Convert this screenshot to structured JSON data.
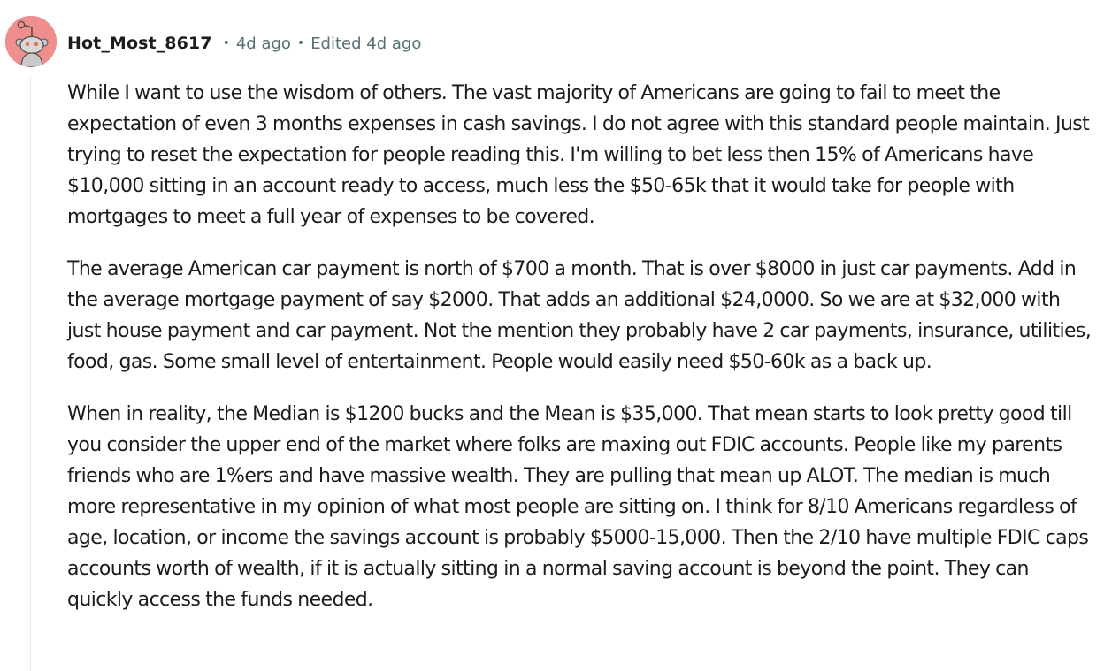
{
  "comment": {
    "author": "Hot_Most_8617",
    "separator": "•",
    "age": "4d ago",
    "edited": "Edited 4d ago",
    "avatar_color": "#ef8e8e",
    "avatar_icon": "snoo-avatar-icon",
    "paragraphs": [
      "While I want to use the wisdom of others. The vast majority of Americans are going to fail to meet the expectation of even 3 months expenses in cash savings. I do not agree with this standard people maintain. Just trying to reset the expectation for people reading this. I'm willing to bet less then 15% of Americans have $10,000 sitting in an account ready to access, much less the $50-65k that it would take for people with mortgages to meet a full year of expenses to be covered.",
      "The average American car payment is north of $700 a month. That is over $8000 in just car payments. Add in the average mortgage payment of say $2000. That adds an additional $24,0000. So we are at $32,000 with just house payment and car payment. Not the mention they probably have 2 car payments, insurance, utilities, food, gas. Some small level of entertainment. People would easily need $50-60k as a back up.",
      "When in reality, the Median is $1200 bucks and the Mean is $35,000. That mean starts to look pretty good till you consider the upper end of the market where folks are maxing out FDIC accounts. People like my parents friends who are 1%ers and have massive wealth. They are pulling that mean up ALOT. The median is much more representative in my opinion of what most people are sitting on. I think for 8/10 Americans regardless of age, location, or income the savings account is probably $5000-15,000. Then the 2/10 have multiple FDIC caps accounts worth of wealth, if it is actually sitting in a normal saving account is beyond the point. They can quickly access the funds needed."
    ]
  }
}
